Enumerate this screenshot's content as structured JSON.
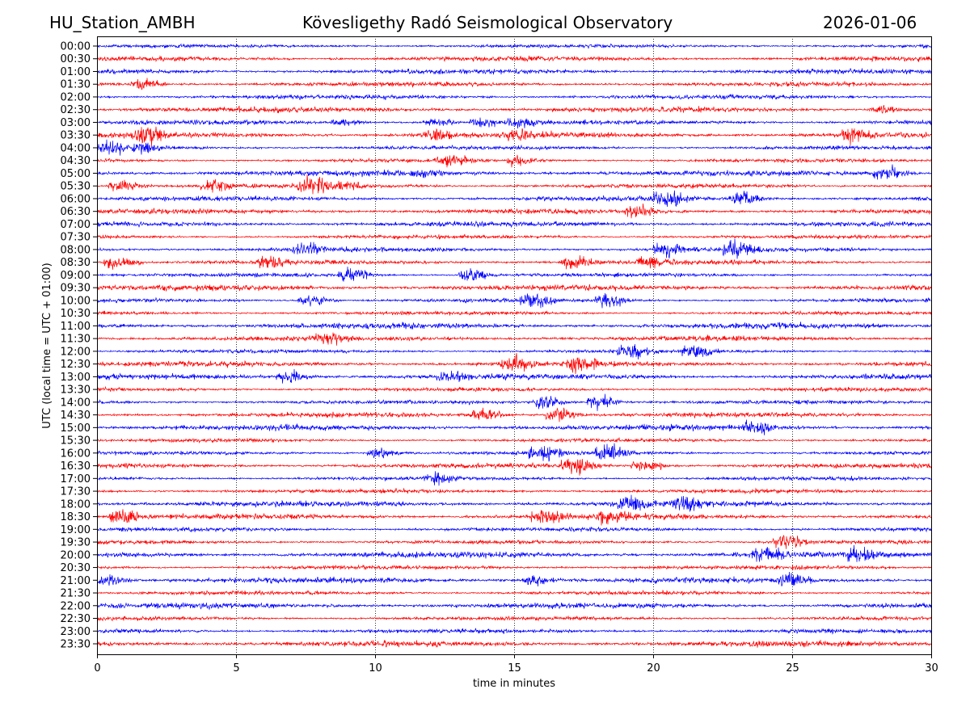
{
  "header": {
    "station": "HU_Station_AMBH",
    "observatory": "Kövesligethy Radó Seismological Observatory",
    "date": "2026-01-06"
  },
  "chart_data": {
    "type": "line",
    "subtype": "helicorder",
    "xlabel": "time in minutes",
    "ylabel": "UTC (local time = UTC + 01:00)",
    "xlim": [
      0,
      30
    ],
    "xticks": [
      "0",
      "5",
      "10",
      "15",
      "20",
      "25",
      "30"
    ],
    "grid": "vertical dotted at x ticks",
    "colors": [
      "#0000ff",
      "#ff0000"
    ],
    "rows": [
      "00:00",
      "00:30",
      "01:00",
      "01:30",
      "02:00",
      "02:30",
      "03:00",
      "03:30",
      "04:00",
      "04:30",
      "05:00",
      "05:30",
      "06:00",
      "06:30",
      "07:00",
      "07:30",
      "08:00",
      "08:30",
      "09:00",
      "09:30",
      "10:00",
      "10:30",
      "11:00",
      "11:30",
      "12:00",
      "12:30",
      "13:00",
      "13:30",
      "14:00",
      "14:30",
      "15:00",
      "15:30",
      "16:00",
      "16:30",
      "17:00",
      "17:30",
      "18:00",
      "18:30",
      "19:00",
      "19:30",
      "20:00",
      "20:30",
      "21:00",
      "21:30",
      "22:00",
      "22:30",
      "23:00",
      "23:30"
    ],
    "events": [
      {
        "row": "01:30",
        "minute": 1.5,
        "amp": 3
      },
      {
        "row": "02:30",
        "minute": 28,
        "amp": 2.5
      },
      {
        "row": "03:00",
        "minute": 15,
        "amp": 3
      },
      {
        "row": "03:00",
        "minute": 12,
        "amp": 2.5
      },
      {
        "row": "03:00",
        "minute": 13.7,
        "amp": 2.5
      },
      {
        "row": "03:00",
        "minute": 8.7,
        "amp": 2
      },
      {
        "row": "03:30",
        "minute": 1.5,
        "amp": 5
      },
      {
        "row": "03:30",
        "minute": 12,
        "amp": 3
      },
      {
        "row": "03:30",
        "minute": 27,
        "amp": 4
      },
      {
        "row": "03:30",
        "minute": 15,
        "amp": 2.5
      },
      {
        "row": "04:00",
        "minute": 0.2,
        "amp": 4
      },
      {
        "row": "04:00",
        "minute": 1.5,
        "amp": 3
      },
      {
        "row": "04:30",
        "minute": 12.5,
        "amp": 3.5
      },
      {
        "row": "04:30",
        "minute": 15,
        "amp": 3
      },
      {
        "row": "05:00",
        "minute": 28.2,
        "amp": 4.5
      },
      {
        "row": "05:00",
        "minute": 11.5,
        "amp": 2
      },
      {
        "row": "05:30",
        "minute": 0.7,
        "amp": 3.5
      },
      {
        "row": "05:30",
        "minute": 4,
        "amp": 3.5
      },
      {
        "row": "05:30",
        "minute": 7.5,
        "amp": 5
      },
      {
        "row": "05:30",
        "minute": 8.7,
        "amp": 3
      },
      {
        "row": "06:00",
        "minute": 20.3,
        "amp": 4.5
      },
      {
        "row": "06:00",
        "minute": 23,
        "amp": 4
      },
      {
        "row": "06:30",
        "minute": 19.3,
        "amp": 3.5
      },
      {
        "row": "08:00",
        "minute": 20.3,
        "amp": 5
      },
      {
        "row": "08:00",
        "minute": 22.8,
        "amp": 5
      },
      {
        "row": "08:00",
        "minute": 7.3,
        "amp": 4
      },
      {
        "row": "08:30",
        "minute": 0.5,
        "amp": 4.5
      },
      {
        "row": "08:30",
        "minute": 6,
        "amp": 3.5
      },
      {
        "row": "08:30",
        "minute": 17,
        "amp": 4
      },
      {
        "row": "08:30",
        "minute": 19.7,
        "amp": 3.5
      },
      {
        "row": "09:00",
        "minute": 8.9,
        "amp": 4.5
      },
      {
        "row": "09:00",
        "minute": 13.3,
        "amp": 4.5
      },
      {
        "row": "10:00",
        "minute": 7.5,
        "amp": 4
      },
      {
        "row": "10:00",
        "minute": 15.5,
        "amp": 4.5
      },
      {
        "row": "10:00",
        "minute": 18.2,
        "amp": 4.5
      },
      {
        "row": "11:30",
        "minute": 8,
        "amp": 3
      },
      {
        "row": "12:00",
        "minute": 19,
        "amp": 4
      },
      {
        "row": "12:00",
        "minute": 21.3,
        "amp": 4
      },
      {
        "row": "12:30",
        "minute": 14.8,
        "amp": 4
      },
      {
        "row": "12:30",
        "minute": 17.2,
        "amp": 3.5
      },
      {
        "row": "13:00",
        "minute": 6.7,
        "amp": 3.5
      },
      {
        "row": "13:00",
        "minute": 12.5,
        "amp": 3.5
      },
      {
        "row": "14:00",
        "minute": 15.9,
        "amp": 5
      },
      {
        "row": "14:00",
        "minute": 17.9,
        "amp": 5
      },
      {
        "row": "14:30",
        "minute": 13.7,
        "amp": 4.5
      },
      {
        "row": "14:30",
        "minute": 16.4,
        "amp": 4.5
      },
      {
        "row": "15:00",
        "minute": 23.5,
        "amp": 3.5
      },
      {
        "row": "16:00",
        "minute": 10,
        "amp": 3
      },
      {
        "row": "16:00",
        "minute": 15.8,
        "amp": 5
      },
      {
        "row": "16:00",
        "minute": 18.2,
        "amp": 5
      },
      {
        "row": "16:30",
        "minute": 17,
        "amp": 4.5
      },
      {
        "row": "16:30",
        "minute": 19.5,
        "amp": 4
      },
      {
        "row": "17:00",
        "minute": 12,
        "amp": 3
      },
      {
        "row": "18:00",
        "minute": 19,
        "amp": 4
      },
      {
        "row": "18:00",
        "minute": 21,
        "amp": 3.5
      },
      {
        "row": "18:30",
        "minute": 0.7,
        "amp": 4.5
      },
      {
        "row": "18:30",
        "minute": 15.9,
        "amp": 4
      },
      {
        "row": "18:30",
        "minute": 18.2,
        "amp": 3.5
      },
      {
        "row": "19:30",
        "minute": 24.6,
        "amp": 5
      },
      {
        "row": "20:00",
        "minute": 23.8,
        "amp": 4.5
      },
      {
        "row": "20:00",
        "minute": 27.3,
        "amp": 4
      },
      {
        "row": "21:00",
        "minute": 0.2,
        "amp": 3.5
      },
      {
        "row": "21:00",
        "minute": 15.6,
        "amp": 3.5
      },
      {
        "row": "21:00",
        "minute": 24.8,
        "amp": 4.5
      }
    ]
  }
}
